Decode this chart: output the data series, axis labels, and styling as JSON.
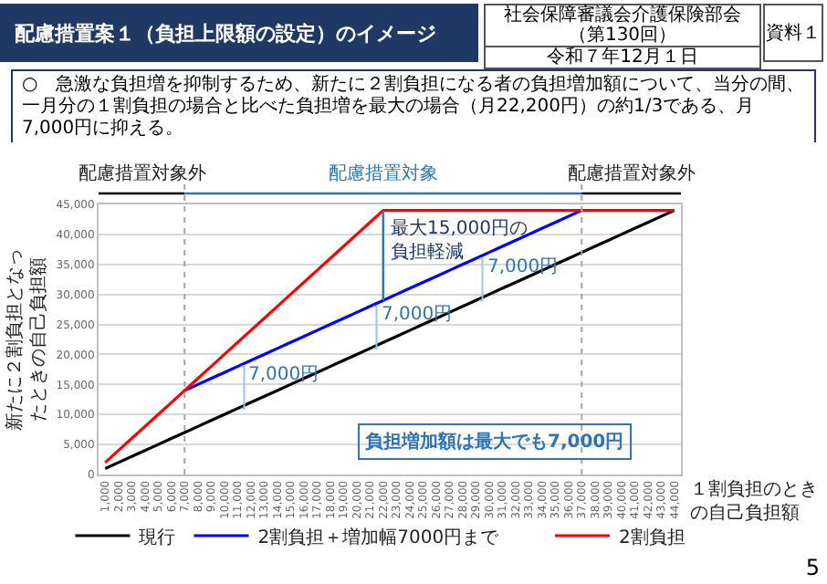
{
  "chart_data": {
    "type": "line",
    "title": "配慮措置案１（負担上限額の設定）のイメージ",
    "subtitle": "○　急激な負担増を抑制するため、新たに２割負担になる者の負担増加額について、当分の間、一月分の１割負担の場合と比べた負担増を最大の場合（月22,200円）の約1/3である、月7,000円に抑える。",
    "ylabel": "新たに２割負担となったときの自己負担額",
    "xlabel": "１割負担のときの自己負担額",
    "categories": [
      "1,000",
      "2,000",
      "3,000",
      "4,000",
      "5,000",
      "6,000",
      "7,000",
      "8,000",
      "9,000",
      "10,000",
      "11,000",
      "12,000",
      "13,000",
      "14,000",
      "15,000",
      "16,000",
      "17,000",
      "18,000",
      "19,000",
      "20,000",
      "21,000",
      "22,000",
      "23,000",
      "24,000",
      "25,000",
      "26,000",
      "27,000",
      "28,000",
      "29,000",
      "30,000",
      "31,000",
      "32,000",
      "33,000",
      "34,000",
      "35,000",
      "36,000",
      "37,000",
      "38,000",
      "39,000",
      "40,000",
      "41,000",
      "42,000",
      "43,000",
      "44,000"
    ],
    "series": [
      {
        "name": "現行",
        "color": "#000000",
        "values": [
          1000,
          2000,
          3000,
          4000,
          5000,
          6000,
          7000,
          8000,
          9000,
          10000,
          11000,
          12000,
          13000,
          14000,
          15000,
          16000,
          17000,
          18000,
          19000,
          20000,
          21000,
          22000,
          23000,
          24000,
          25000,
          26000,
          27000,
          28000,
          29000,
          30000,
          31000,
          32000,
          33000,
          34000,
          35000,
          36000,
          37000,
          38000,
          39000,
          40000,
          41000,
          42000,
          43000,
          44000
        ]
      },
      {
        "name": "2割負担＋増加幅7000円まで",
        "color": "#0000ff",
        "values": [
          null,
          null,
          null,
          null,
          null,
          null,
          14000,
          15000,
          16000,
          17000,
          18000,
          19000,
          20000,
          21000,
          22000,
          23000,
          24000,
          25000,
          26000,
          27000,
          28000,
          29000,
          30000,
          31000,
          32000,
          33000,
          34000,
          35000,
          36000,
          37000,
          38000,
          39000,
          40000,
          41000,
          42000,
          43000,
          44000,
          null,
          null,
          null,
          null,
          null,
          null,
          null
        ]
      },
      {
        "name": "2割負担",
        "color": "#ff0000",
        "values": [
          2000,
          4000,
          6000,
          8000,
          10000,
          12000,
          14000,
          16000,
          18000,
          20000,
          22000,
          24000,
          26000,
          28000,
          30000,
          32000,
          34000,
          36000,
          38000,
          40000,
          42000,
          44000,
          44000,
          44000,
          44000,
          44000,
          44000,
          44000,
          44000,
          44000,
          44000,
          44000,
          44000,
          44000,
          44000,
          44000,
          44000,
          44000,
          44000,
          44000,
          44000,
          44000,
          44000,
          44000
        ]
      }
    ],
    "ylim": [
      0,
      45000
    ],
    "yticks": [
      {
        "value": 0,
        "label": "0"
      },
      {
        "value": 5000,
        "label": "5,000"
      },
      {
        "value": 10000,
        "label": "10,000"
      },
      {
        "value": 15000,
        "label": "15,000"
      },
      {
        "value": 20000,
        "label": "20,000"
      },
      {
        "value": 25000,
        "label": "25,000"
      },
      {
        "value": 30000,
        "label": "30,000"
      },
      {
        "value": 35000,
        "label": "35,000"
      },
      {
        "value": 40000,
        "label": "40,000"
      },
      {
        "value": 45000,
        "label": "45,000"
      }
    ],
    "grid": "y",
    "legend": "bottom",
    "marker": "none",
    "line_style": "solid",
    "ref_lines": [
      {
        "axis": "x",
        "value": "7,000",
        "color": "#a6a6a6",
        "line_style": "dotted"
      },
      {
        "axis": "x",
        "value": "37,000",
        "color": "#a6a6a6",
        "line_style": "dotted"
      }
    ],
    "annotations": [
      "社会保障審議会介護保険部会（第130回）",
      "令和７年12月１日",
      "資料１",
      "配慮措置対象外",
      "配慮措置対象",
      "配慮措置対象外",
      {
        "text": "最大15,000円の負担軽減",
        "x": "22,000",
        "y": 44000
      },
      {
        "text": "7,000円",
        "x": "11,000",
        "y": 16500
      },
      {
        "text": "7,000円",
        "x": "21,000",
        "y": 26500
      },
      {
        "text": "7,000円",
        "x": "29,000",
        "y": 34500
      },
      "負担増加額は最大でも7,000円",
      "5"
    ]
  }
}
